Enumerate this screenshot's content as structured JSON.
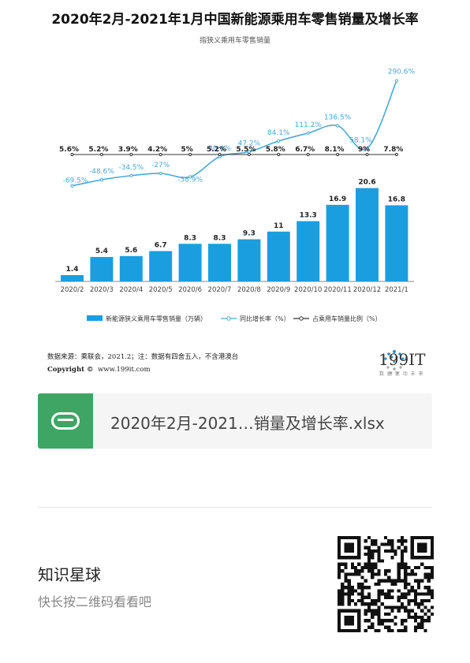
{
  "chart_data": {
    "type": "bar+line",
    "title": "2020年2月-2021年1月中国新能源乘用车零售销量及增长率",
    "subtitle": "指狭义乘用车零售销量",
    "categories": [
      "2020/2",
      "2020/3",
      "2020/4",
      "2020/5",
      "2020/6",
      "2020/7",
      "2020/8",
      "2020/9",
      "2020/10",
      "2020/11",
      "2020/12",
      "2021/1"
    ],
    "series": [
      {
        "name": "新能源狭义乘用车零售销量（万辆）",
        "type": "bar",
        "color": "#1a9ee0",
        "values": [
          1.4,
          5.4,
          5.6,
          6.7,
          8.3,
          8.3,
          9.3,
          11,
          13.3,
          16.9,
          20.6,
          16.8
        ],
        "labels": [
          "1.4",
          "5.4",
          "5.6",
          "6.7",
          "8.3",
          "8.3",
          "9.3",
          "11",
          "13.3",
          "16.9",
          "20.6",
          "16.8"
        ]
      },
      {
        "name": "同比增长率（%）",
        "type": "line",
        "color": "#4aa8d8",
        "values": [
          -69.5,
          -48.6,
          -34.5,
          -27,
          -38.9,
          30.4,
          47.2,
          84.1,
          111.2,
          136.5,
          58.1,
          290.6
        ],
        "labels": [
          "-69.5%",
          "-48.6%",
          "-34.5%",
          "-27%",
          "-38.9%",
          "30.4%",
          "47.2%",
          "84.1%",
          "111.2%",
          "136.5%",
          "58.1%",
          "290.6%"
        ]
      },
      {
        "name": "占乘用车销量比例（%）",
        "type": "line",
        "color": "#333333",
        "values": [
          5.6,
          5.2,
          3.9,
          4.2,
          5,
          5.2,
          5.5,
          5.8,
          6.7,
          8.1,
          9,
          7.8
        ],
        "labels": [
          "5.6%",
          "5.2%",
          "3.9%",
          "4.2%",
          "5%",
          "5.2%",
          "5.5%",
          "5.8%",
          "6.7%",
          "8.1%",
          "9%",
          "7.8%"
        ]
      }
    ],
    "legend_placement": "bottom"
  },
  "source": {
    "line1": "数据来源：乘联会，2021.2；注：数据有四舍五入，不含港澳台",
    "line2_label": "Copyright ©",
    "line2_url": "www.199it.com"
  },
  "brand": {
    "name": "199IT",
    "tagline": "数 据 驱 动 未 来"
  },
  "file_card": {
    "filename": "2020年2月-2021…销量及增长率.xlsx",
    "icon": "spreadsheet-s-icon",
    "icon_color": "#3fa564"
  },
  "footer": {
    "title": "知识星球",
    "subtitle": "快长按二维码看看吧",
    "qr_icon": "qr-code-icon"
  }
}
